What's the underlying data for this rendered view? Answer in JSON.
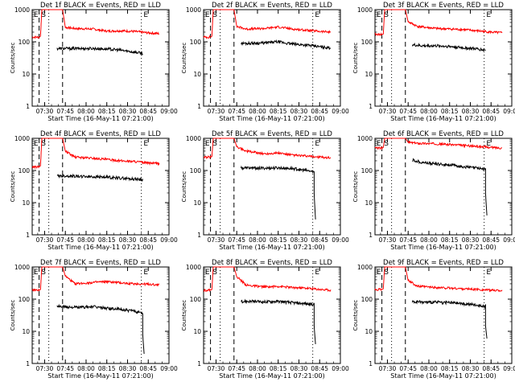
{
  "chart_data": [
    {
      "type": "line",
      "title": "Det 1f BLACK = Events, RED = LLD",
      "xlabel": "Start Time (16-May-11 07:21:00)",
      "ylabel": "Counts/sec",
      "yscale": "log",
      "ylim": [
        1,
        1000
      ],
      "xlim": [
        "07:21",
        "09:00"
      ],
      "xticks": [
        "07:30",
        "07:45",
        "08:00",
        "08:15",
        "08:30",
        "08:45",
        "09:00"
      ],
      "yticks": [
        "1",
        "10",
        "100",
        "1000"
      ],
      "annotations": [
        "E",
        "S",
        "E"
      ],
      "series": [
        {
          "name": "RED = LLD",
          "color": "#ff0000",
          "x": [
            "07:21",
            "07:26",
            "07:27",
            "07:28",
            "07:42",
            "07:43",
            "07:45",
            "07:52",
            "08:05",
            "08:15",
            "08:25",
            "08:35",
            "08:45",
            "08:53"
          ],
          "y": [
            140,
            140,
            150,
            1000,
            1000,
            1000,
            280,
            260,
            250,
            215,
            220,
            210,
            190,
            180
          ]
        },
        {
          "name": "BLACK = Events",
          "color": "#000000",
          "x": [
            "07:39",
            "07:45",
            "07:55",
            "08:05",
            "08:15",
            "08:25",
            "08:35",
            "08:41"
          ],
          "y": [
            62,
            62,
            62,
            62,
            60,
            55,
            48,
            44
          ]
        }
      ]
    },
    {
      "type": "line",
      "title": "Det 2f BLACK = Events, RED = LLD",
      "xlabel": "Start Time (16-May-11 07:21:00)",
      "ylabel": "Counts/sec",
      "yscale": "log",
      "ylim": [
        1,
        1000
      ],
      "xlim": [
        "07:21",
        "09:00"
      ],
      "xticks": [
        "07:30",
        "07:45",
        "08:00",
        "08:15",
        "08:30",
        "08:45",
        "09:00"
      ],
      "yticks": [
        "1",
        "10",
        "100",
        "1000"
      ],
      "annotations": [
        "E",
        "S",
        "E"
      ],
      "series": [
        {
          "name": "RED = LLD",
          "color": "#ff0000",
          "x": [
            "07:21",
            "07:26",
            "07:27",
            "07:28",
            "07:42",
            "07:43",
            "07:45",
            "07:52",
            "08:05",
            "08:15",
            "08:25",
            "08:35",
            "08:45",
            "08:53"
          ],
          "y": [
            140,
            140,
            150,
            1000,
            1000,
            1000,
            300,
            250,
            260,
            290,
            250,
            230,
            210,
            200
          ]
        },
        {
          "name": "BLACK = Events",
          "color": "#000000",
          "x": [
            "07:48",
            "07:55",
            "08:05",
            "08:15",
            "08:25",
            "08:35",
            "08:45",
            "08:53"
          ],
          "y": [
            90,
            90,
            92,
            100,
            85,
            80,
            70,
            65
          ]
        }
      ]
    },
    {
      "type": "line",
      "title": "Det 3f BLACK = Events, RED = LLD",
      "xlabel": "Start Time (16-May-11 07:21:00)",
      "ylabel": "Counts/sec",
      "yscale": "log",
      "ylim": [
        1,
        1000
      ],
      "xlim": [
        "07:21",
        "09:00"
      ],
      "xticks": [
        "07:30",
        "07:45",
        "08:00",
        "08:15",
        "08:30",
        "08:45",
        "09:00"
      ],
      "yticks": [
        "1",
        "10",
        "100",
        "1000"
      ],
      "annotations": [
        "E",
        "S",
        "E"
      ],
      "series": [
        {
          "name": "RED = LLD",
          "color": "#ff0000",
          "x": [
            "07:21",
            "07:26",
            "07:27",
            "07:28",
            "07:42",
            "07:43",
            "07:45",
            "07:52",
            "08:05",
            "08:15",
            "08:25",
            "08:35",
            "08:45",
            "08:53"
          ],
          "y": [
            170,
            170,
            175,
            1000,
            1000,
            1000,
            420,
            300,
            260,
            250,
            240,
            220,
            200,
            190
          ]
        },
        {
          "name": "BLACK = Events",
          "color": "#000000",
          "x": [
            "07:48",
            "07:55",
            "08:05",
            "08:15",
            "08:25",
            "08:35",
            "08:41"
          ],
          "y": [
            80,
            75,
            75,
            72,
            65,
            60,
            55
          ]
        }
      ]
    },
    {
      "type": "line",
      "title": "Det 4f BLACK = Events, RED = LLD",
      "xlabel": "Start Time (16-May-11 07:21:00)",
      "ylabel": "Counts/sec",
      "yscale": "log",
      "ylim": [
        1,
        1000
      ],
      "xlim": [
        "07:21",
        "09:00"
      ],
      "xticks": [
        "07:30",
        "07:45",
        "08:00",
        "08:15",
        "08:30",
        "08:45",
        "09:00"
      ],
      "yticks": [
        "1",
        "10",
        "100",
        "1000"
      ],
      "annotations": [
        "E",
        "S",
        "E"
      ],
      "series": [
        {
          "name": "RED = LLD",
          "color": "#ff0000",
          "x": [
            "07:21",
            "07:26",
            "07:27",
            "07:28",
            "07:42",
            "07:43",
            "07:45",
            "07:52",
            "08:05",
            "08:15",
            "08:25",
            "08:35",
            "08:45",
            "08:53"
          ],
          "y": [
            130,
            130,
            140,
            1000,
            1000,
            1000,
            400,
            260,
            240,
            220,
            200,
            190,
            170,
            165
          ]
        },
        {
          "name": "BLACK = Events",
          "color": "#000000",
          "x": [
            "07:39",
            "07:45",
            "07:55",
            "08:05",
            "08:15",
            "08:25",
            "08:35",
            "08:41"
          ],
          "y": [
            68,
            68,
            66,
            64,
            62,
            58,
            54,
            52
          ]
        }
      ]
    },
    {
      "type": "line",
      "title": "Det 5f BLACK = Events, RED = LLD",
      "xlabel": "Start Time (16-May-11 07:21:00)",
      "ylabel": "Counts/sec",
      "yscale": "log",
      "ylim": [
        1,
        1000
      ],
      "xlim": [
        "07:21",
        "09:00"
      ],
      "xticks": [
        "07:30",
        "07:45",
        "08:00",
        "08:15",
        "08:30",
        "08:45",
        "09:00"
      ],
      "yticks": [
        "1",
        "10",
        "100",
        "1000"
      ],
      "annotations": [
        "E",
        "S",
        "E"
      ],
      "series": [
        {
          "name": "RED = LLD",
          "color": "#ff0000",
          "x": [
            "07:21",
            "07:26",
            "07:27",
            "07:28",
            "07:42",
            "07:43",
            "07:45",
            "07:52",
            "08:05",
            "08:15",
            "08:25",
            "08:35",
            "08:45",
            "08:53"
          ],
          "y": [
            260,
            260,
            270,
            1000,
            1000,
            1000,
            550,
            400,
            330,
            350,
            300,
            280,
            260,
            250
          ]
        },
        {
          "name": "BLACK = Events",
          "color": "#000000",
          "x": [
            "07:48",
            "07:55",
            "08:05",
            "08:15",
            "08:25",
            "08:35",
            "08:41",
            "08:41",
            "08:42"
          ],
          "y": [
            120,
            120,
            118,
            120,
            115,
            100,
            90,
            20,
            3
          ]
        }
      ]
    },
    {
      "type": "line",
      "title": "Det 6f BLACK = Events, RED = LLD",
      "xlabel": "Start Time (16-May-11 07:21:00)",
      "ylabel": "Counts/sec",
      "yscale": "log",
      "ylim": [
        1,
        1000
      ],
      "xlim": [
        "07:21",
        "09:00"
      ],
      "xticks": [
        "07:30",
        "07:45",
        "08:00",
        "08:15",
        "08:30",
        "08:45",
        "09:00"
      ],
      "yticks": [
        "1",
        "10",
        "100",
        "1000"
      ],
      "annotations": [
        "E",
        "S",
        "E"
      ],
      "series": [
        {
          "name": "RED = LLD",
          "color": "#ff0000",
          "x": [
            "07:21",
            "07:26",
            "07:27",
            "07:28",
            "07:42",
            "07:43",
            "07:45",
            "07:52",
            "08:05",
            "08:15",
            "08:25",
            "08:35",
            "08:45",
            "08:53"
          ],
          "y": [
            500,
            500,
            520,
            1000,
            1000,
            1000,
            750,
            700,
            680,
            640,
            600,
            560,
            520,
            500
          ]
        },
        {
          "name": "BLACK = Events",
          "color": "#000000",
          "x": [
            "07:48",
            "07:55",
            "08:05",
            "08:15",
            "08:25",
            "08:35",
            "08:41",
            "08:41",
            "08:42"
          ],
          "y": [
            210,
            180,
            160,
            150,
            130,
            120,
            110,
            20,
            4
          ]
        }
      ]
    },
    {
      "type": "line",
      "title": "Det 7f BLACK = Events, RED = LLD",
      "xlabel": "Start Time (16-May-11 07:21:00)",
      "ylabel": "Counts/sec",
      "yscale": "log",
      "ylim": [
        1,
        1000
      ],
      "xlim": [
        "07:21",
        "09:00"
      ],
      "xticks": [
        "07:30",
        "07:45",
        "08:00",
        "08:15",
        "08:30",
        "08:45",
        "09:00"
      ],
      "yticks": [
        "1",
        "10",
        "100",
        "1000"
      ],
      "annotations": [
        "E",
        "S",
        "E"
      ],
      "series": [
        {
          "name": "RED = LLD",
          "color": "#ff0000",
          "x": [
            "07:21",
            "07:26",
            "07:27",
            "07:28",
            "07:42",
            "07:43",
            "07:45",
            "07:52",
            "08:05",
            "08:15",
            "08:25",
            "08:35",
            "08:45",
            "08:53"
          ],
          "y": [
            190,
            190,
            200,
            1000,
            1000,
            1000,
            520,
            300,
            330,
            350,
            320,
            300,
            290,
            280
          ]
        },
        {
          "name": "BLACK = Events",
          "color": "#000000",
          "x": [
            "07:39",
            "07:45",
            "07:55",
            "08:05",
            "08:15",
            "08:25",
            "08:35",
            "08:41",
            "08:41",
            "08:42"
          ],
          "y": [
            60,
            58,
            55,
            58,
            52,
            48,
            42,
            38,
            8,
            2
          ]
        }
      ]
    },
    {
      "type": "line",
      "title": "Det 8f BLACK = Events, RED = LLD",
      "xlabel": "Start Time (16-May-11 07:21:00)",
      "ylabel": "Counts/sec",
      "yscale": "log",
      "ylim": [
        1,
        1000
      ],
      "xlim": [
        "07:21",
        "09:00"
      ],
      "xticks": [
        "07:30",
        "07:45",
        "08:00",
        "08:15",
        "08:30",
        "08:45",
        "09:00"
      ],
      "yticks": [
        "1",
        "10",
        "100",
        "1000"
      ],
      "annotations": [
        "E",
        "S",
        "E"
      ],
      "series": [
        {
          "name": "RED = LLD",
          "color": "#ff0000",
          "x": [
            "07:21",
            "07:26",
            "07:27",
            "07:28",
            "07:42",
            "07:43",
            "07:45",
            "07:52",
            "08:05",
            "08:15",
            "08:25",
            "08:35",
            "08:45",
            "08:53"
          ],
          "y": [
            190,
            190,
            200,
            1000,
            1000,
            1000,
            500,
            270,
            240,
            250,
            230,
            220,
            200,
            190
          ]
        },
        {
          "name": "BLACK = Events",
          "color": "#000000",
          "x": [
            "07:48",
            "07:55",
            "08:05",
            "08:15",
            "08:25",
            "08:35",
            "08:41",
            "08:41",
            "08:42"
          ],
          "y": [
            85,
            85,
            82,
            85,
            78,
            72,
            68,
            15,
            4
          ]
        }
      ]
    },
    {
      "type": "line",
      "title": "Det 9f BLACK = Events, RED = LLD",
      "xlabel": "Start Time (16-May-11 07:21:00)",
      "ylabel": "Counts/sec",
      "yscale": "log",
      "ylim": [
        1,
        1000
      ],
      "xlim": [
        "07:21",
        "09:00"
      ],
      "xticks": [
        "07:30",
        "07:45",
        "08:00",
        "08:15",
        "08:30",
        "08:45",
        "09:00"
      ],
      "yticks": [
        "1",
        "10",
        "100",
        "1000"
      ],
      "annotations": [
        "E",
        "S",
        "E"
      ],
      "series": [
        {
          "name": "RED = LLD",
          "color": "#ff0000",
          "x": [
            "07:21",
            "07:26",
            "07:27",
            "07:28",
            "07:42",
            "07:43",
            "07:45",
            "07:52",
            "08:05",
            "08:15",
            "08:25",
            "08:35",
            "08:45",
            "08:53"
          ],
          "y": [
            200,
            200,
            210,
            1000,
            1000,
            1000,
            380,
            250,
            230,
            220,
            210,
            200,
            190,
            185
          ]
        },
        {
          "name": "BLACK = Events",
          "color": "#000000",
          "x": [
            "07:48",
            "07:55",
            "08:05",
            "08:15",
            "08:25",
            "08:35",
            "08:41",
            "08:41",
            "08:42"
          ],
          "y": [
            85,
            80,
            80,
            78,
            72,
            65,
            60,
            15,
            6
          ]
        }
      ]
    }
  ]
}
